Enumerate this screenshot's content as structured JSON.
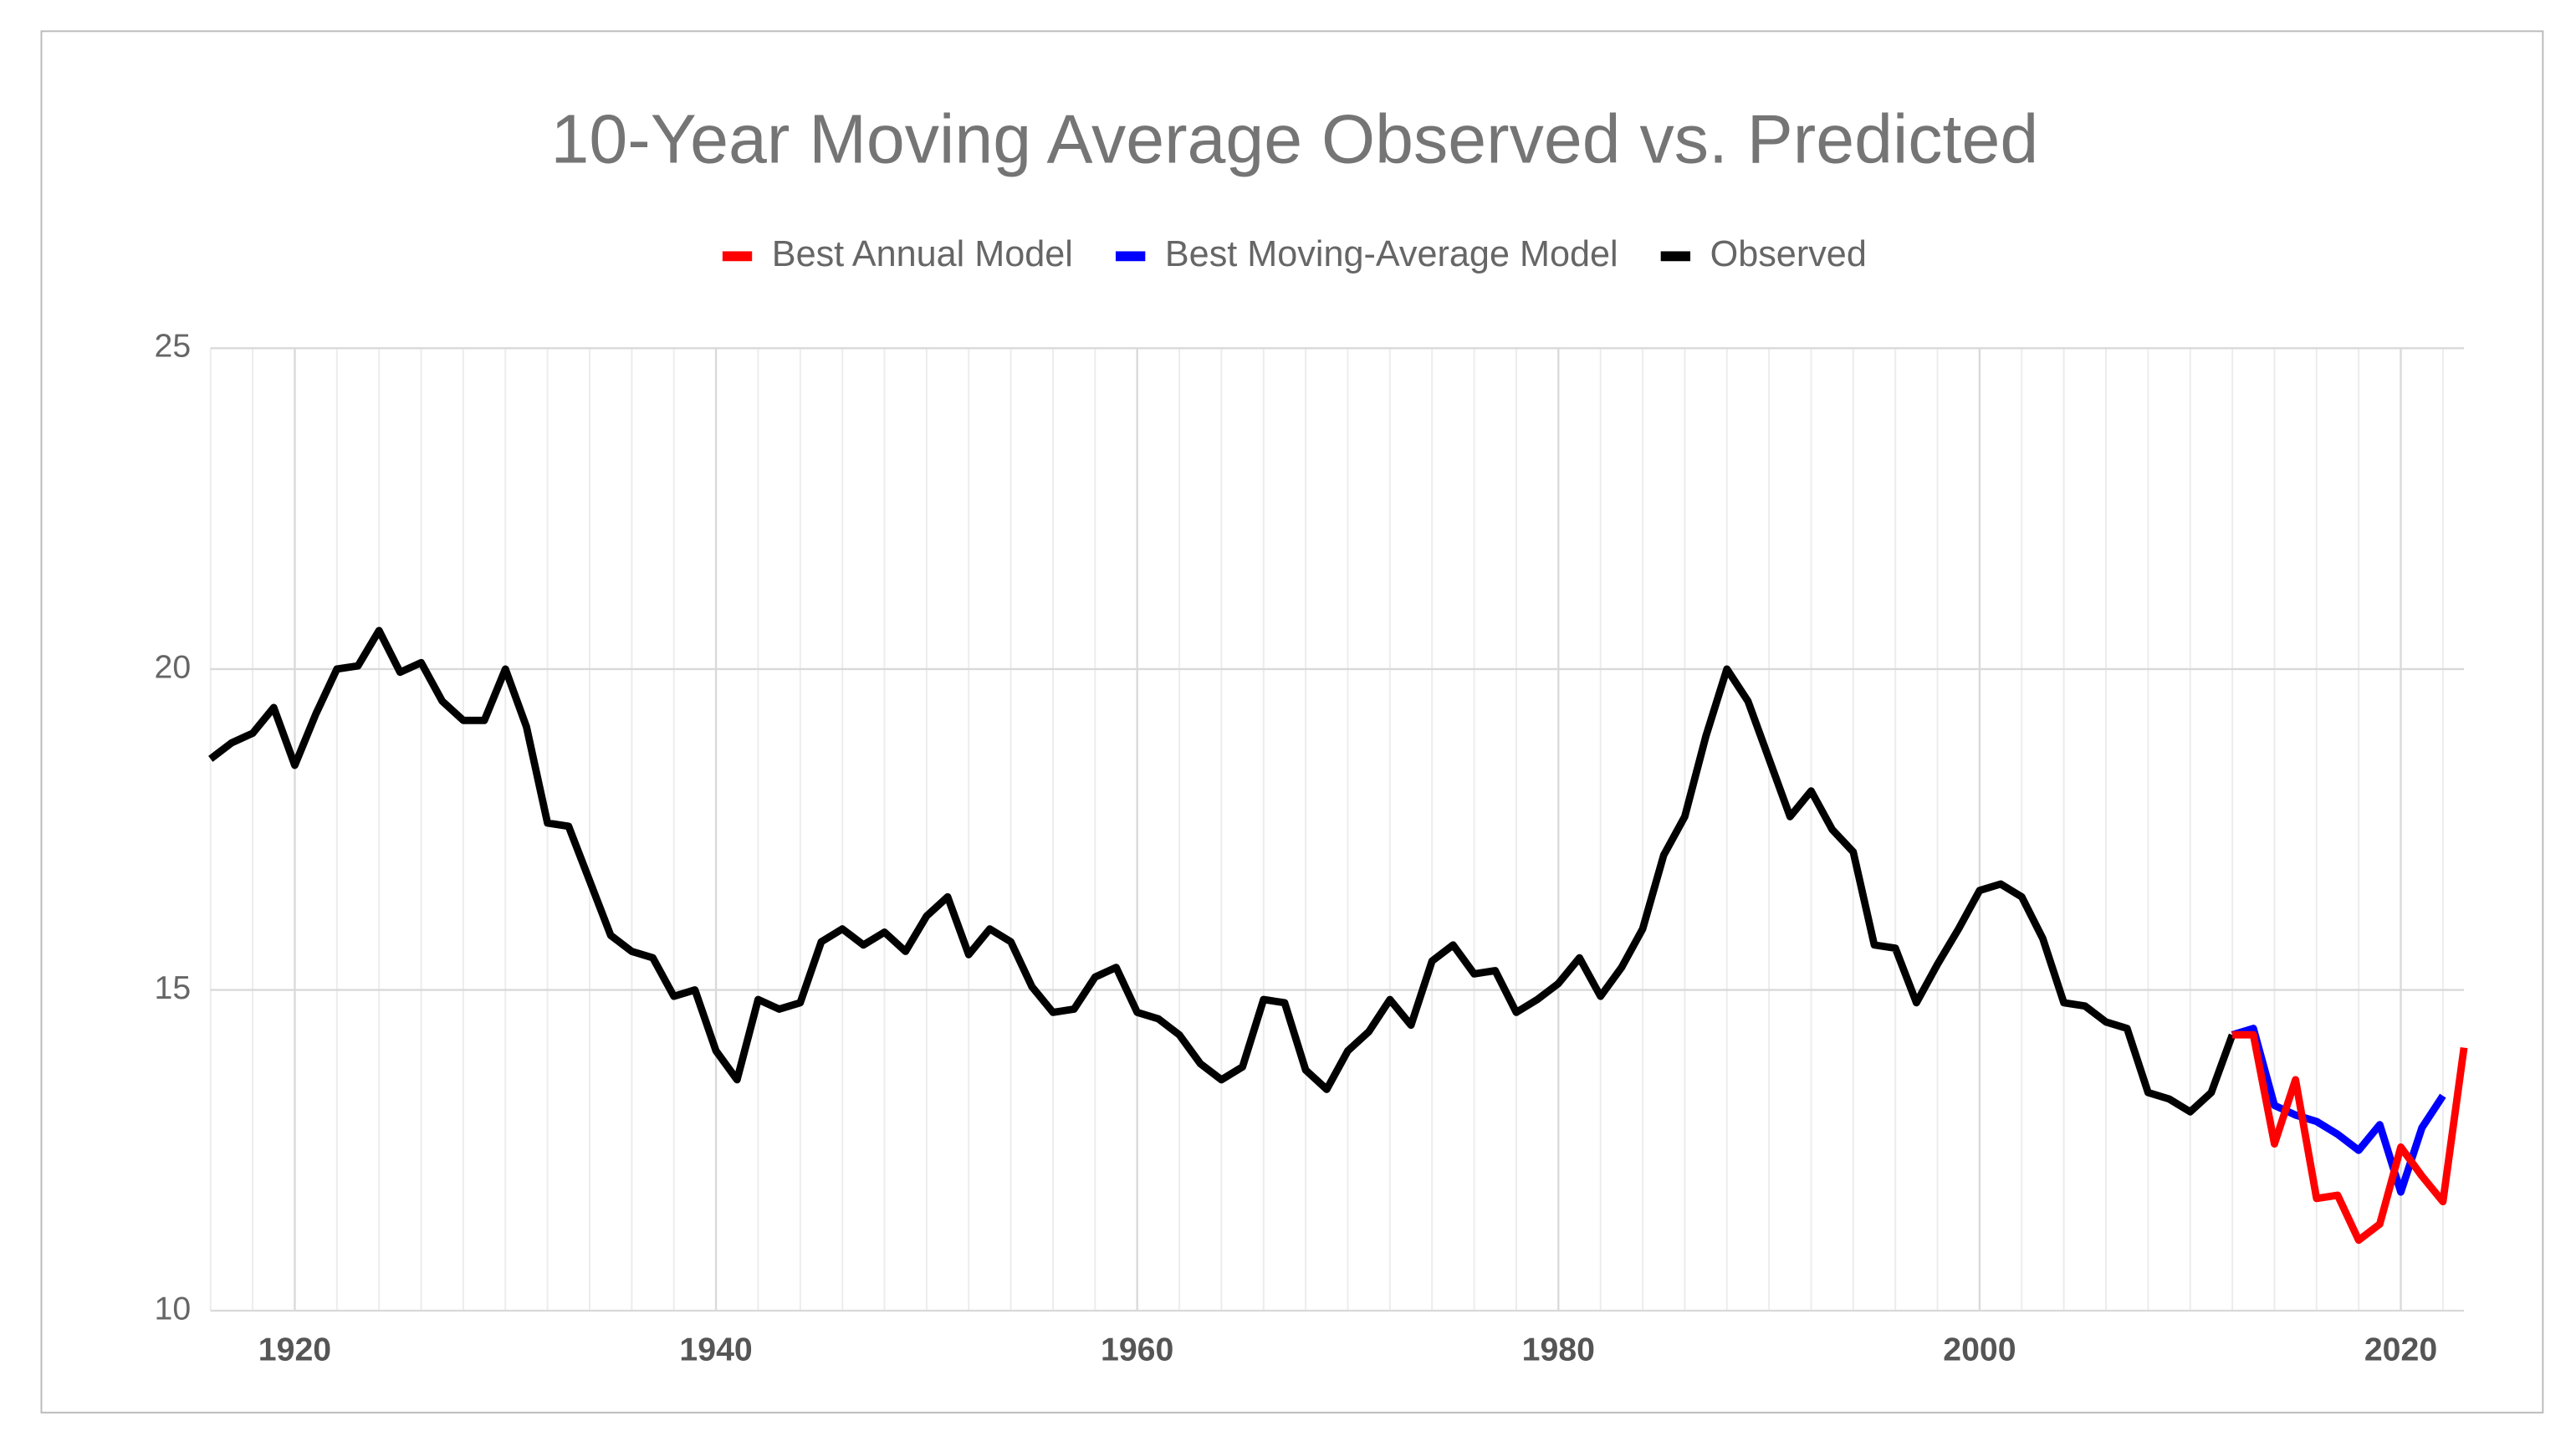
{
  "chart_data": {
    "type": "line",
    "title": "10-Year Moving Average Observed vs. Predicted",
    "x": [
      1916,
      1917,
      1918,
      1919,
      1920,
      1921,
      1922,
      1923,
      1924,
      1925,
      1926,
      1927,
      1928,
      1929,
      1930,
      1931,
      1932,
      1933,
      1934,
      1935,
      1936,
      1937,
      1938,
      1939,
      1940,
      1941,
      1942,
      1943,
      1944,
      1945,
      1946,
      1947,
      1948,
      1949,
      1950,
      1951,
      1952,
      1953,
      1954,
      1955,
      1956,
      1957,
      1958,
      1959,
      1960,
      1961,
      1962,
      1963,
      1964,
      1965,
      1966,
      1967,
      1968,
      1969,
      1970,
      1971,
      1972,
      1973,
      1974,
      1975,
      1976,
      1977,
      1978,
      1979,
      1980,
      1981,
      1982,
      1983,
      1984,
      1985,
      1986,
      1987,
      1988,
      1989,
      1990,
      1991,
      1992,
      1993,
      1994,
      1995,
      1996,
      1997,
      1998,
      1999,
      2000,
      2001,
      2002,
      2003,
      2004,
      2005,
      2006,
      2007,
      2008,
      2009,
      2010,
      2011,
      2012,
      2013,
      2014,
      2015,
      2016,
      2017,
      2018,
      2019,
      2020,
      2021,
      2022,
      2023
    ],
    "series": [
      {
        "name": "Best Annual Model",
        "color": "#ff0000",
        "values": [
          null,
          null,
          null,
          null,
          null,
          null,
          null,
          null,
          null,
          null,
          null,
          null,
          null,
          null,
          null,
          null,
          null,
          null,
          null,
          null,
          null,
          null,
          null,
          null,
          null,
          null,
          null,
          null,
          null,
          null,
          null,
          null,
          null,
          null,
          null,
          null,
          null,
          null,
          null,
          null,
          null,
          null,
          null,
          null,
          null,
          null,
          null,
          null,
          null,
          null,
          null,
          null,
          null,
          null,
          null,
          null,
          null,
          null,
          null,
          null,
          null,
          null,
          null,
          null,
          null,
          null,
          null,
          null,
          null,
          null,
          null,
          null,
          null,
          null,
          null,
          null,
          null,
          null,
          null,
          null,
          null,
          null,
          null,
          null,
          null,
          null,
          null,
          null,
          null,
          null,
          null,
          null,
          null,
          null,
          null,
          null,
          14.3,
          14.3,
          12.6,
          13.6,
          11.75,
          11.8,
          11.1,
          11.35,
          12.55,
          12.1,
          11.7,
          14.1
        ]
      },
      {
        "name": "Best Moving-Average Model",
        "color": "#0000ff",
        "values": [
          null,
          null,
          null,
          null,
          null,
          null,
          null,
          null,
          null,
          null,
          null,
          null,
          null,
          null,
          null,
          null,
          null,
          null,
          null,
          null,
          null,
          null,
          null,
          null,
          null,
          null,
          null,
          null,
          null,
          null,
          null,
          null,
          null,
          null,
          null,
          null,
          null,
          null,
          null,
          null,
          null,
          null,
          null,
          null,
          null,
          null,
          null,
          null,
          null,
          null,
          null,
          null,
          null,
          null,
          null,
          null,
          null,
          null,
          null,
          null,
          null,
          null,
          null,
          null,
          null,
          null,
          null,
          null,
          null,
          null,
          null,
          null,
          null,
          null,
          null,
          null,
          null,
          null,
          null,
          null,
          null,
          null,
          null,
          null,
          null,
          null,
          null,
          null,
          null,
          null,
          null,
          null,
          null,
          null,
          null,
          null,
          14.3,
          14.4,
          13.2,
          13.05,
          12.95,
          12.75,
          12.5,
          12.9,
          11.85,
          12.85,
          13.35,
          null
        ]
      },
      {
        "name": "Observed",
        "color": "#000000",
        "values": [
          18.6,
          18.85,
          19.0,
          19.4,
          18.5,
          19.3,
          20.0,
          20.05,
          20.6,
          19.95,
          20.1,
          19.5,
          19.2,
          19.2,
          20.0,
          19.1,
          17.6,
          17.55,
          16.7,
          15.85,
          15.6,
          15.5,
          14.9,
          15.0,
          14.05,
          13.6,
          14.85,
          14.7,
          14.8,
          15.75,
          15.95,
          15.7,
          15.9,
          15.6,
          16.15,
          16.45,
          15.55,
          15.95,
          15.75,
          15.05,
          14.65,
          14.7,
          15.2,
          15.35,
          14.65,
          14.55,
          14.3,
          13.85,
          13.6,
          13.8,
          14.85,
          14.8,
          13.75,
          13.45,
          14.05,
          14.35,
          14.85,
          14.45,
          15.45,
          15.7,
          15.25,
          15.3,
          14.65,
          14.85,
          15.1,
          15.5,
          14.9,
          15.35,
          15.95,
          17.1,
          17.7,
          18.95,
          20.0,
          19.5,
          18.6,
          17.7,
          18.1,
          17.5,
          17.15,
          15.7,
          15.65,
          14.8,
          15.4,
          15.95,
          16.55,
          16.65,
          16.45,
          15.8,
          14.8,
          14.75,
          14.5,
          14.4,
          13.4,
          13.3,
          13.1,
          13.4,
          14.3,
          null,
          null,
          null,
          null,
          null,
          null,
          null,
          null,
          null,
          null,
          null
        ]
      }
    ],
    "xlim": [
      1916,
      2023
    ],
    "ylim": [
      10,
      25
    ],
    "xticks": [
      1920,
      1940,
      1960,
      1980,
      2000,
      2020
    ],
    "yticks": [
      10,
      15,
      20,
      25
    ],
    "grid": true,
    "legend": "top"
  }
}
